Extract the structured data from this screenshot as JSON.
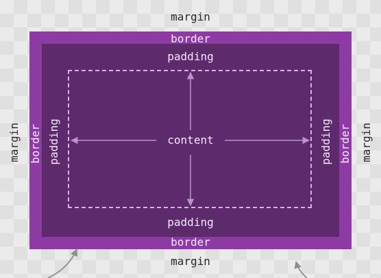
{
  "labels": {
    "margin": "margin",
    "border": "border",
    "padding": "padding",
    "content": "content"
  },
  "colors": {
    "background": "#ebebeb",
    "border": "#8e3aa5",
    "padding": "#5d2a6c",
    "content_outline": "#d6b3e3",
    "arrows": "#b995c6",
    "margin_text": "#2b2b2b",
    "inner_text": "#f3e7f7"
  }
}
